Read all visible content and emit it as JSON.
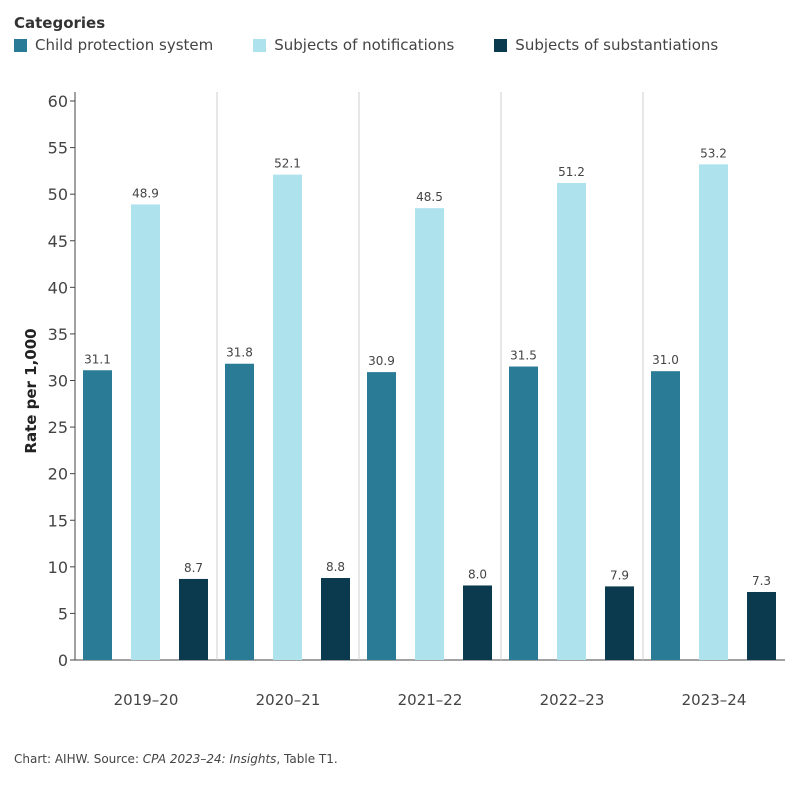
{
  "legend": {
    "title": "Categories",
    "items": [
      {
        "label": "Child protection system",
        "color": "#2a7b96"
      },
      {
        "label": "Subjects of notifications",
        "color": "#aee3ee"
      },
      {
        "label": "Subjects of substantiations",
        "color": "#0b3a4f"
      }
    ]
  },
  "footer": {
    "prefix": "Chart: AIHW. Source: ",
    "source_italic": "CPA 2023–24: Insights",
    "suffix": ", Table T1."
  },
  "chart_data": {
    "type": "bar",
    "categories": [
      "2019–20",
      "2020–21",
      "2021–22",
      "2022–23",
      "2023–24"
    ],
    "series": [
      {
        "name": "Child protection system",
        "values": [
          31.1,
          31.8,
          30.9,
          31.5,
          31.0
        ],
        "color": "#2a7b96"
      },
      {
        "name": "Subjects of notifications",
        "values": [
          48.9,
          52.1,
          48.5,
          51.2,
          53.2
        ],
        "color": "#aee3ee"
      },
      {
        "name": "Subjects of substantiations",
        "values": [
          8.7,
          8.8,
          8.0,
          7.9,
          7.3
        ],
        "color": "#0b3a4f"
      }
    ],
    "data_labels": [
      [
        "31.1",
        "31.8",
        "30.9",
        "31.5",
        "31.0"
      ],
      [
        "48.9",
        "52.1",
        "48.5",
        "51.2",
        "53.2"
      ],
      [
        "8.7",
        "8.8",
        "8.0",
        "7.9",
        "7.3"
      ]
    ],
    "title": "",
    "xlabel": "",
    "ylabel": "Rate per 1,000",
    "ylim": [
      0,
      60
    ],
    "yticks": [
      0,
      5,
      10,
      15,
      20,
      25,
      30,
      35,
      40,
      45,
      50,
      55,
      60
    ],
    "grid": false,
    "legend_position": "top-left"
  }
}
